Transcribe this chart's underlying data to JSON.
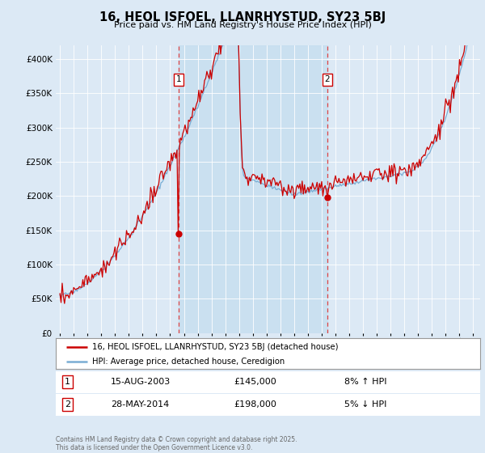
{
  "title": "16, HEOL ISFOEL, LLANRHYSTUD, SY23 5BJ",
  "subtitle": "Price paid vs. HM Land Registry's House Price Index (HPI)",
  "ylim": [
    0,
    420000
  ],
  "yticks": [
    0,
    50000,
    100000,
    150000,
    200000,
    250000,
    300000,
    350000,
    400000
  ],
  "background_color": "#dce9f5",
  "plot_bg_color": "#dce9f5",
  "hpi_color": "#7aadd4",
  "price_color": "#cc0000",
  "shade_color": "#c8dff0",
  "sale1_x": 2003.62,
  "sale2_x": 2014.41,
  "sale1_price": 145000,
  "sale2_price": 198000,
  "vline_color": "#dd4444",
  "legend_label1": "16, HEOL ISFOEL, LLANRHYSTUD, SY23 5BJ (detached house)",
  "legend_label2": "HPI: Average price, detached house, Ceredigion",
  "sale1_date": "15-AUG-2003",
  "sale1_pct": "8%",
  "sale1_dir": "↑",
  "sale2_date": "28-MAY-2014",
  "sale2_pct": "5%",
  "sale2_dir": "↓",
  "footnote": "Contains HM Land Registry data © Crown copyright and database right 2025.\nThis data is licensed under the Open Government Licence v3.0."
}
